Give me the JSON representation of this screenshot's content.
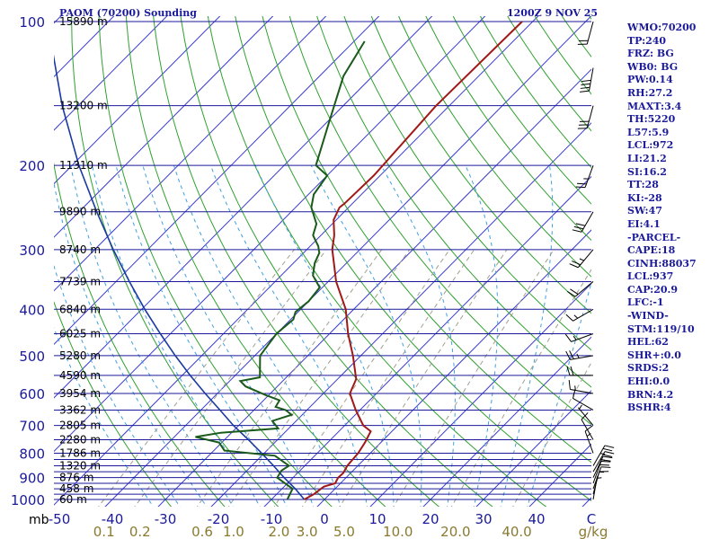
{
  "colors": {
    "isobar": "#1a1a9a",
    "isotherm": "#3a3ad0",
    "dry_adiabat": "#30a030",
    "moist_adiabat": "#40a0e0",
    "mixing_ratio": "#a0a090",
    "temperature": "#a01818",
    "dewpoint": "#1a5a1a",
    "parcel": "#1a3aa0",
    "label": "#1a1a9a",
    "mixing_label": "#8a7a30"
  },
  "chart_data": {
    "type": "line",
    "title": "PAOM (70200) Sounding",
    "time_label": "1200Z  9 NOV 25",
    "xlabel": "C",
    "xlabel_mixing": "g/kg",
    "ylabel": "mb",
    "pressure_range": [
      1000,
      100
    ],
    "temperature_range": [
      -50,
      50
    ],
    "pressure_levels": [
      1000,
      975,
      950,
      925,
      900,
      875,
      850,
      825,
      800,
      750,
      700,
      650,
      600,
      550,
      500,
      450,
      400,
      350,
      300,
      250,
      200,
      150,
      100
    ],
    "pressure_labels": [
      {
        "p": 100,
        "text": "100"
      },
      {
        "p": 200,
        "text": "200"
      },
      {
        "p": 300,
        "text": "300"
      },
      {
        "p": 400,
        "text": "400"
      },
      {
        "p": 500,
        "text": "500"
      },
      {
        "p": 600,
        "text": "600"
      },
      {
        "p": 700,
        "text": "700"
      },
      {
        "p": 800,
        "text": "800"
      },
      {
        "p": 900,
        "text": "900"
      },
      {
        "p": 1000,
        "text": "1000"
      }
    ],
    "height_labels": [
      {
        "p": 100,
        "text": "15890 m"
      },
      {
        "p": 150,
        "text": "13200 m"
      },
      {
        "p": 200,
        "text": "11310 m"
      },
      {
        "p": 250,
        "text": "9890 m"
      },
      {
        "p": 300,
        "text": "8740 m"
      },
      {
        "p": 350,
        "text": "7739 m"
      },
      {
        "p": 400,
        "text": "6840 m"
      },
      {
        "p": 450,
        "text": "6025 m"
      },
      {
        "p": 500,
        "text": "5280 m"
      },
      {
        "p": 550,
        "text": "4590 m"
      },
      {
        "p": 600,
        "text": "3954 m"
      },
      {
        "p": 650,
        "text": "3362 m"
      },
      {
        "p": 700,
        "text": "2805 m"
      },
      {
        "p": 750,
        "text": "2280 m"
      },
      {
        "p": 800,
        "text": "1786 m"
      },
      {
        "p": 850,
        "text": "1320 m"
      },
      {
        "p": 900,
        "text": "876 m"
      },
      {
        "p": 950,
        "text": "458 m"
      },
      {
        "p": 1000,
        "text": "60 m"
      }
    ],
    "temperature_ticks": [
      {
        "t": -50,
        "text": "-50"
      },
      {
        "t": -40,
        "text": "-40"
      },
      {
        "t": -30,
        "text": "-30"
      },
      {
        "t": -20,
        "text": "-20"
      },
      {
        "t": -10,
        "text": "-10"
      },
      {
        "t": 0,
        "text": "0"
      },
      {
        "t": 10,
        "text": "10"
      },
      {
        "t": 20,
        "text": "20"
      },
      {
        "t": 30,
        "text": "30"
      },
      {
        "t": 40,
        "text": "40"
      }
    ],
    "mixing_ratio_labels": [
      {
        "w": 0.1,
        "text": "0.1"
      },
      {
        "w": 0.2,
        "text": "0.2"
      },
      {
        "w": 0.6,
        "text": "0.6"
      },
      {
        "w": 1.0,
        "text": "1.0"
      },
      {
        "w": 2.0,
        "text": "2.0"
      },
      {
        "w": 3.0,
        "text": "3.0"
      },
      {
        "w": 5.0,
        "text": "5.0"
      },
      {
        "w": 10.0,
        "text": "10.0"
      },
      {
        "w": 20.0,
        "text": "20.0"
      },
      {
        "w": 40.0,
        "text": "40.0"
      }
    ],
    "series": [
      {
        "name": "Temperature",
        "points": [
          {
            "p": 1000,
            "t": -3.8
          },
          {
            "p": 975,
            "t": -3.0
          },
          {
            "p": 940,
            "t": -2.5
          },
          {
            "p": 925,
            "t": -1.0
          },
          {
            "p": 900,
            "t": -1.5
          },
          {
            "p": 880,
            "t": -1.4
          },
          {
            "p": 850,
            "t": -2.0
          },
          {
            "p": 800,
            "t": -2.3
          },
          {
            "p": 760,
            "t": -3.0
          },
          {
            "p": 720,
            "t": -4.0
          },
          {
            "p": 700,
            "t": -6.5
          },
          {
            "p": 650,
            "t": -10.8
          },
          {
            "p": 600,
            "t": -15.0
          },
          {
            "p": 560,
            "t": -16.5
          },
          {
            "p": 500,
            "t": -21.5
          },
          {
            "p": 450,
            "t": -26.5
          },
          {
            "p": 400,
            "t": -31.5
          },
          {
            "p": 350,
            "t": -38.5
          },
          {
            "p": 300,
            "t": -45.2
          },
          {
            "p": 280,
            "t": -47.5
          },
          {
            "p": 260,
            "t": -50.5
          },
          {
            "p": 245,
            "t": -51.7
          },
          {
            "p": 240,
            "t": -51.5
          },
          {
            "p": 210,
            "t": -51.2
          },
          {
            "p": 150,
            "t": -52.5
          },
          {
            "p": 100,
            "t": -52.0
          }
        ]
      },
      {
        "name": "Dewpoint",
        "points": [
          {
            "p": 1000,
            "t": -7.0
          },
          {
            "p": 950,
            "t": -8.0
          },
          {
            "p": 900,
            "t": -13.0
          },
          {
            "p": 870,
            "t": -13.5
          },
          {
            "p": 850,
            "t": -13.0
          },
          {
            "p": 810,
            "t": -17.5
          },
          {
            "p": 790,
            "t": -28.0
          },
          {
            "p": 760,
            "t": -30.5
          },
          {
            "p": 740,
            "t": -36.0
          },
          {
            "p": 725,
            "t": -32.0
          },
          {
            "p": 710,
            "t": -22.0
          },
          {
            "p": 685,
            "t": -24.5
          },
          {
            "p": 665,
            "t": -22.0
          },
          {
            "p": 650,
            "t": -24.0
          },
          {
            "p": 640,
            "t": -26.5
          },
          {
            "p": 620,
            "t": -27.0
          },
          {
            "p": 605,
            "t": -30.5
          },
          {
            "p": 580,
            "t": -36.0
          },
          {
            "p": 565,
            "t": -38.0
          },
          {
            "p": 555,
            "t": -35.0
          },
          {
            "p": 520,
            "t": -37.5
          },
          {
            "p": 500,
            "t": -39.0
          },
          {
            "p": 450,
            "t": -40.0
          },
          {
            "p": 420,
            "t": -39.5
          },
          {
            "p": 405,
            "t": -40.5
          },
          {
            "p": 385,
            "t": -40.0
          },
          {
            "p": 360,
            "t": -40.5
          },
          {
            "p": 340,
            "t": -44.0
          },
          {
            "p": 320,
            "t": -46.0
          },
          {
            "p": 305,
            "t": -47.0
          },
          {
            "p": 295,
            "t": -48.5
          },
          {
            "p": 280,
            "t": -51.5
          },
          {
            "p": 265,
            "t": -53.0
          },
          {
            "p": 245,
            "t": -57.0
          },
          {
            "p": 230,
            "t": -59.0
          },
          {
            "p": 210,
            "t": -60.0
          },
          {
            "p": 200,
            "t": -64.0
          },
          {
            "p": 160,
            "t": -70.0
          },
          {
            "p": 130,
            "t": -75.5
          },
          {
            "p": 110,
            "t": -78.0
          }
        ]
      },
      {
        "name": "Parcel",
        "points": [
          {
            "p": 1000,
            "t": -3.8
          },
          {
            "p": 950,
            "t": -7.5
          },
          {
            "p": 900,
            "t": -11.7
          },
          {
            "p": 850,
            "t": -15.9
          },
          {
            "p": 800,
            "t": -20.5
          },
          {
            "p": 750,
            "t": -25.5
          },
          {
            "p": 700,
            "t": -31.0
          },
          {
            "p": 650,
            "t": -36.4
          },
          {
            "p": 600,
            "t": -42.3
          },
          {
            "p": 550,
            "t": -48.5
          },
          {
            "p": 500,
            "t": -55.0
          },
          {
            "p": 450,
            "t": -61.9
          },
          {
            "p": 400,
            "t": -69.4
          },
          {
            "p": 350,
            "t": -77.5
          },
          {
            "p": 300,
            "t": -86.5
          },
          {
            "p": 250,
            "t": -96.7
          },
          {
            "p": 200,
            "t": -108.7
          },
          {
            "p": 150,
            "t": -123.0
          },
          {
            "p": 100,
            "t": -141.5
          }
        ]
      }
    ],
    "wind_barbs": [
      {
        "p": 1000,
        "dir": 10,
        "spd": 5
      },
      {
        "p": 975,
        "dir": 15,
        "spd": 10
      },
      {
        "p": 950,
        "dir": 20,
        "spd": 15
      },
      {
        "p": 925,
        "dir": 20,
        "spd": 20
      },
      {
        "p": 900,
        "dir": 25,
        "spd": 20
      },
      {
        "p": 875,
        "dir": 30,
        "spd": 25
      },
      {
        "p": 850,
        "dir": 30,
        "spd": 25
      },
      {
        "p": 800,
        "dir": 340,
        "spd": 15
      },
      {
        "p": 750,
        "dir": 330,
        "spd": 10
      },
      {
        "p": 700,
        "dir": 320,
        "spd": 5
      },
      {
        "p": 650,
        "dir": 300,
        "spd": 10
      },
      {
        "p": 600,
        "dir": 280,
        "spd": 15
      },
      {
        "p": 550,
        "dir": 270,
        "spd": 20
      },
      {
        "p": 500,
        "dir": 260,
        "spd": 25
      },
      {
        "p": 450,
        "dir": 250,
        "spd": 15
      },
      {
        "p": 400,
        "dir": 240,
        "spd": 15
      },
      {
        "p": 350,
        "dir": 230,
        "spd": 20
      },
      {
        "p": 300,
        "dir": 220,
        "spd": 25
      },
      {
        "p": 250,
        "dir": 210,
        "spd": 30
      },
      {
        "p": 200,
        "dir": 200,
        "spd": 25
      },
      {
        "p": 150,
        "dir": 195,
        "spd": 30
      },
      {
        "p": 125,
        "dir": 190,
        "spd": 40
      },
      {
        "p": 100,
        "dir": 195,
        "spd": 20
      }
    ]
  },
  "indices": [
    "WMO:70200",
    "TP:240",
    "FRZ: BG",
    "WB0: BG",
    "PW:0.14",
    "RH:27.2",
    "MAXT:3.4",
    "TH:5220",
    "L57:5.9",
    "LCL:972",
    "LI:21.2",
    "SI:16.2",
    "TT:28",
    "KI:-28",
    "SW:47",
    "EI:4.1",
    "-PARCEL-",
    "CAPE:18",
    "CINH:88037",
    "LCL:937",
    "CAP:20.9",
    "LFC:-1",
    "-WIND-",
    "STM:119/10",
    "HEL:62",
    "SHR+:0.0",
    "SRDS:2",
    "EHI:0.0",
    "BRN:4.2",
    "BSHR:4"
  ]
}
